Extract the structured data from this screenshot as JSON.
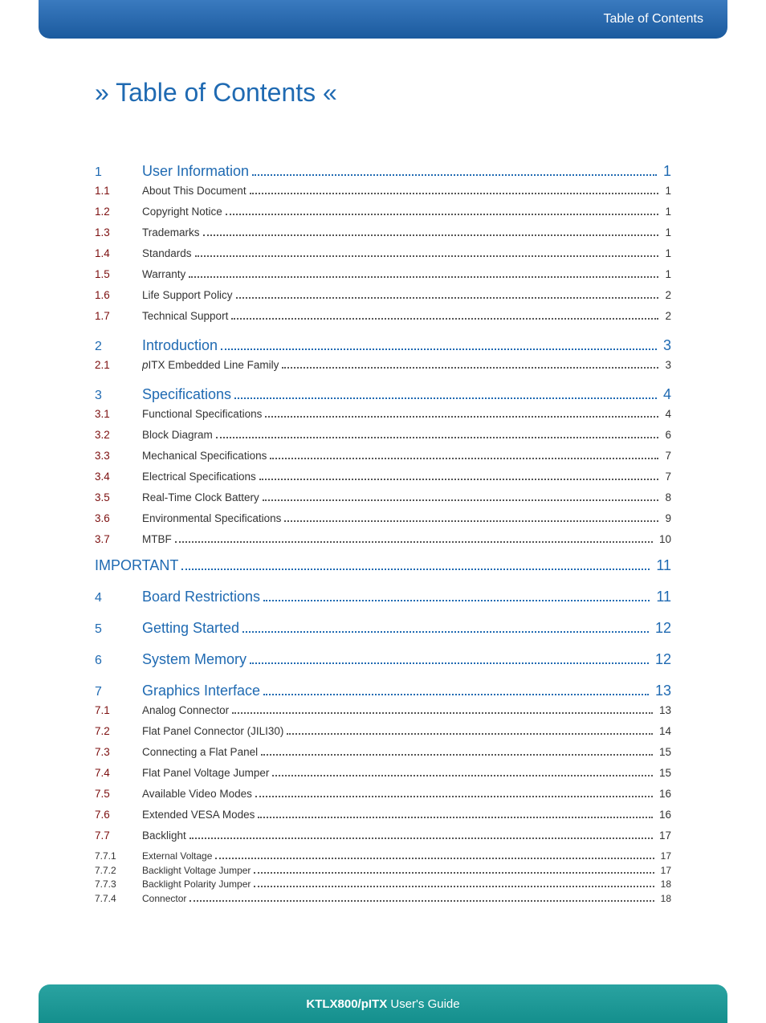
{
  "colors": {
    "header_gradient_top": "#3a7abf",
    "header_gradient_bottom": "#1b5a9e",
    "footer_gradient_top": "#2aa3a1",
    "footer_gradient_bottom": "#148f8d",
    "primary_blue": "#1f6ab2",
    "sub_number_red": "#7c0f0f",
    "body_text": "#333333",
    "white": "#ffffff"
  },
  "header": {
    "text": "Table of Contents"
  },
  "page_title": "» Table of Contents «",
  "footer": {
    "product": "KTLX800/pITX",
    "suffix": " User's Guide"
  },
  "toc": [
    {
      "level": "section",
      "num": "1",
      "label": "User Information",
      "page": "1"
    },
    {
      "level": "sub",
      "num": "1.1",
      "label": "About This Document",
      "page": "1"
    },
    {
      "level": "sub",
      "num": "1.2",
      "label": "Copyright Notice",
      "page": "1"
    },
    {
      "level": "sub",
      "num": "1.3",
      "label": "Trademarks",
      "page": "1"
    },
    {
      "level": "sub",
      "num": "1.4",
      "label": "Standards",
      "page": "1"
    },
    {
      "level": "sub",
      "num": "1.5",
      "label": "Warranty",
      "page": "1"
    },
    {
      "level": "sub",
      "num": "1.6",
      "label": "Life Support Policy",
      "page": "2"
    },
    {
      "level": "sub",
      "num": "1.7",
      "label": "Technical Support",
      "page": "2"
    },
    {
      "level": "section",
      "num": "2",
      "label": "Introduction",
      "page": "3"
    },
    {
      "level": "sub",
      "num": "2.1",
      "label": "pITX Embedded Line Family",
      "page": "3",
      "italic_prefix": "p"
    },
    {
      "level": "section",
      "num": "3",
      "label": "Specifications",
      "page": "4"
    },
    {
      "level": "sub",
      "num": "3.1",
      "label": "Functional Specifications",
      "page": "4"
    },
    {
      "level": "sub",
      "num": "3.2",
      "label": "Block Diagram",
      "page": "6"
    },
    {
      "level": "sub",
      "num": "3.3",
      "label": "Mechanical Specifications",
      "page": "7"
    },
    {
      "level": "sub",
      "num": "3.4",
      "label": "Electrical Specifications",
      "page": "7"
    },
    {
      "level": "sub",
      "num": "3.5",
      "label": "Real-Time Clock Battery",
      "page": "8"
    },
    {
      "level": "sub",
      "num": "3.6",
      "label": "Environmental Specifications",
      "page": "9"
    },
    {
      "level": "sub",
      "num": "3.7",
      "label": "MTBF",
      "page": "10"
    },
    {
      "level": "important",
      "num": "",
      "label": "IMPORTANT",
      "page": "11"
    },
    {
      "level": "section",
      "num": "4",
      "label": "Board Restrictions",
      "page": "11"
    },
    {
      "level": "section",
      "num": "5",
      "label": "Getting Started",
      "page": "12"
    },
    {
      "level": "section",
      "num": "6",
      "label": "System Memory",
      "page": "12"
    },
    {
      "level": "section",
      "num": "7",
      "label": "Graphics Interface",
      "page": "13"
    },
    {
      "level": "sub",
      "num": "7.1",
      "label": "Analog Connector",
      "page": "13"
    },
    {
      "level": "sub",
      "num": "7.2",
      "label": "Flat Panel Connector (JILI30)",
      "page": "14"
    },
    {
      "level": "sub",
      "num": "7.3",
      "label": "Connecting a Flat Panel",
      "page": "15"
    },
    {
      "level": "sub",
      "num": "7.4",
      "label": "Flat Panel Voltage Jumper",
      "page": "15"
    },
    {
      "level": "sub",
      "num": "7.5",
      "label": "Available Video Modes",
      "page": "16"
    },
    {
      "level": "sub",
      "num": "7.6",
      "label": "Extended VESA Modes",
      "page": "16"
    },
    {
      "level": "sub",
      "num": "7.7",
      "label": "Backlight",
      "page": "17"
    },
    {
      "level": "subsub",
      "num": "7.7.1",
      "label": "External Voltage",
      "page": "17"
    },
    {
      "level": "subsub",
      "num": "7.7.2",
      "label": "Backlight Voltage Jumper",
      "page": "17"
    },
    {
      "level": "subsub",
      "num": "7.7.3",
      "label": "Backlight Polarity Jumper",
      "page": "18"
    },
    {
      "level": "subsub",
      "num": "7.7.4",
      "label": "Connector",
      "page": "18"
    }
  ]
}
